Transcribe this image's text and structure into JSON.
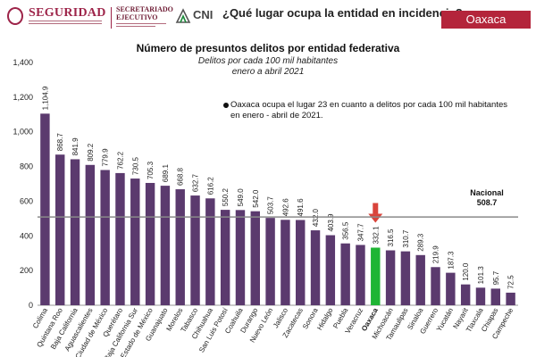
{
  "header": {
    "logo_seguridad_text": "SEGURIDAD",
    "logo_sesnsp_line1": "SECRETARIADO",
    "logo_sesnsp_line2": "EJECUTIVO",
    "logo_cni_text": "CNI",
    "question": "¿Qué lugar ocupa la entidad en incidencia?",
    "state_tab": "Oaxaca",
    "brand_color": "#9d2449",
    "tab_color": "#b4253b"
  },
  "note": "Oaxaca ocupa el lugar 23 en cuanto a delitos por cada 100 mil habitantes en enero - abril de 2021.",
  "chart_data": {
    "type": "bar",
    "title": "Número de presuntos delitos por entidad federativa",
    "subtitle": [
      "Delitos por cada 100 mil habitantes",
      "enero a abril 2021"
    ],
    "xlabel": "",
    "ylabel": "",
    "ylim": [
      0,
      1400
    ],
    "yticks": [
      "0",
      "200",
      "400",
      "600",
      "800",
      "1,000",
      "1,200",
      "1,400"
    ],
    "ytick_values": [
      0,
      200,
      400,
      600,
      800,
      1000,
      1200,
      1400
    ],
    "grid": false,
    "categories": [
      "Colima",
      "Quintana Roo",
      "Baja California",
      "Aguascalientes",
      "Ciudad de México",
      "Querétaro",
      "Baja California Sur",
      "Estado de México",
      "Guanajuato",
      "Morelos",
      "Tabasco",
      "Chihuahua",
      "San Luis Potosí",
      "Coahuila",
      "Durango",
      "Nuevo León",
      "Jalisco",
      "Zacatecas",
      "Sonora",
      "Hidalgo",
      "Puebla",
      "Veracruz",
      "Oaxaca",
      "Michoacán",
      "Tamaulipas",
      "Sinaloa",
      "Guerrero",
      "Yucatán",
      "Nayarit",
      "Tlaxcala",
      "Chiapas",
      "Campeche"
    ],
    "values": [
      1104.9,
      868.7,
      841.9,
      809.2,
      779.9,
      762.2,
      730.5,
      705.3,
      689.1,
      668.8,
      632.7,
      616.2,
      550.2,
      549.0,
      542.0,
      503.7,
      492.6,
      491.6,
      432.0,
      403.9,
      356.5,
      347.7,
      332.1,
      316.5,
      310.7,
      289.3,
      219.9,
      187.3,
      120.0,
      101.3,
      95.7,
      72.5
    ],
    "value_labels": [
      "1,104.9",
      "868.7",
      "841.9",
      "809.2",
      "779.9",
      "762.2",
      "730.5",
      "705.3",
      "689.1",
      "668.8",
      "632.7",
      "616.2",
      "550.2",
      "549.0",
      "542.0",
      "503.7",
      "492.6",
      "491.6",
      "432.0",
      "403.9",
      "356.5",
      "347.7",
      "332.1",
      "316.5",
      "310.7",
      "289.3",
      "219.9",
      "187.3",
      "120.0",
      "101.3",
      "95.7",
      "72.5"
    ],
    "highlight": "Oaxaca",
    "bar_color": "#5b3a6e",
    "highlight_color": "#1fb534",
    "arrow_color": "#d9443b",
    "reference_line": {
      "value": 508.7,
      "label": "Nacional",
      "value_label": "508.7",
      "color": "#8a8a8a"
    }
  }
}
